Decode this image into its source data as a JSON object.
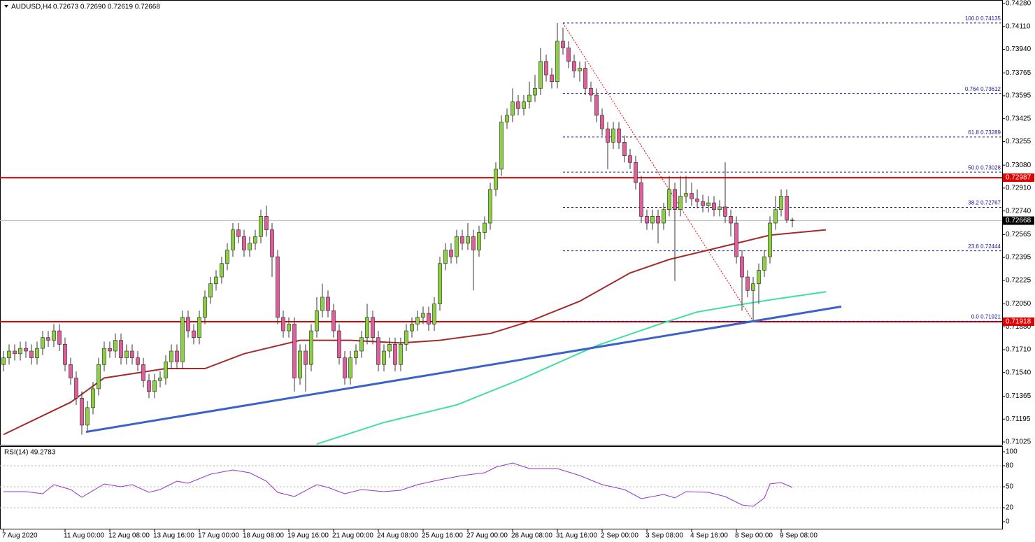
{
  "chart_data": {
    "type": "candlestick",
    "symbol": "AUDUSD,H4",
    "quote": "0.72673 0.72690 0.72619 0.72668",
    "up_color": "#8bd13c",
    "down_color": "#e55b9a",
    "wick_color": "#333333",
    "ylim": [
      0.71025,
      0.7428
    ],
    "yticks": [
      {
        "value": 0.7428,
        "label": "0.74280"
      },
      {
        "value": 0.7411,
        "label": "0.74110"
      },
      {
        "value": 0.7394,
        "label": "0.73940"
      },
      {
        "value": 0.73765,
        "label": "0.73765"
      },
      {
        "value": 0.73595,
        "label": "0.73595"
      },
      {
        "value": 0.73425,
        "label": "0.73425"
      },
      {
        "value": 0.73255,
        "label": "0.73255"
      },
      {
        "value": 0.7308,
        "label": "0.73080"
      },
      {
        "value": 0.7291,
        "label": "0.72910"
      },
      {
        "value": 0.7274,
        "label": "0.72740"
      },
      {
        "value": 0.72565,
        "label": "0.72565"
      },
      {
        "value": 0.72395,
        "label": "0.72395"
      },
      {
        "value": 0.72225,
        "label": "0.72225"
      },
      {
        "value": 0.7205,
        "label": "0.72050"
      },
      {
        "value": 0.7188,
        "label": "0.71880"
      },
      {
        "value": 0.7171,
        "label": "0.71710"
      },
      {
        "value": 0.7154,
        "label": "0.71540"
      },
      {
        "value": 0.71365,
        "label": "0.71365"
      },
      {
        "value": 0.71195,
        "label": "0.71195"
      },
      {
        "value": 0.71025,
        "label": "0.71025"
      }
    ],
    "xticks": [
      {
        "value": 0,
        "label": "7 Aug 2020"
      },
      {
        "value": 11,
        "label": "11 Aug 00:00"
      },
      {
        "value": 19,
        "label": "12 Aug 08:00"
      },
      {
        "value": 27,
        "label": "13 Aug 16:00"
      },
      {
        "value": 35,
        "label": "17 Aug 00:00"
      },
      {
        "value": 43,
        "label": "18 Aug 08:00"
      },
      {
        "value": 51,
        "label": "19 Aug 16:00"
      },
      {
        "value": 59,
        "label": "21 Aug 00:00"
      },
      {
        "value": 67,
        "label": "24 Aug 08:00"
      },
      {
        "value": 75,
        "label": "25 Aug 16:00"
      },
      {
        "value": 83,
        "label": "27 Aug 00:00"
      },
      {
        "value": 91,
        "label": "28 Aug 08:00"
      },
      {
        "value": 99,
        "label": "31 Aug 16:00"
      },
      {
        "value": 107,
        "label": "2 Sep 00:00"
      },
      {
        "value": 115,
        "label": "3 Sep 08:00"
      },
      {
        "value": 123,
        "label": "4 Sep 16:00"
      },
      {
        "value": 131,
        "label": "8 Sep 00:00"
      },
      {
        "value": 139,
        "label": "9 Sep 08:00"
      }
    ],
    "open": [
      0.716,
      0.7165,
      0.717,
      0.7168,
      0.7172,
      0.717,
      0.7165,
      0.7172,
      0.718,
      0.7178,
      0.7185,
      0.7175,
      0.716,
      0.715,
      0.7135,
      0.7115,
      0.7128,
      0.7142,
      0.716,
      0.7172,
      0.717,
      0.7178,
      0.7165,
      0.717,
      0.7165,
      0.716,
      0.7148,
      0.714,
      0.7148,
      0.715,
      0.7162,
      0.717,
      0.7162,
      0.7195,
      0.7185,
      0.718,
      0.7195,
      0.721,
      0.722,
      0.7225,
      0.7235,
      0.7245,
      0.726,
      0.7255,
      0.7245,
      0.725,
      0.7255,
      0.727,
      0.726,
      0.724,
      0.7195,
      0.7185,
      0.719,
      0.715,
      0.717,
      0.716,
      0.7185,
      0.72,
      0.721,
      0.72,
      0.7185,
      0.7165,
      0.715,
      0.7165,
      0.717,
      0.718,
      0.7195,
      0.718,
      0.716,
      0.717,
      0.7175,
      0.716,
      0.7175,
      0.7185,
      0.719,
      0.7195,
      0.7198,
      0.719,
      0.7205,
      0.7235,
      0.7245,
      0.724,
      0.7255,
      0.725,
      0.7255,
      0.7245,
      0.7258,
      0.7265,
      0.729,
      0.7305,
      0.734,
      0.7345,
      0.7355,
      0.735,
      0.7355,
      0.736,
      0.7365,
      0.7385,
      0.7375,
      0.737,
      0.74,
      0.7395,
      0.7385,
      0.7378,
      0.738,
      0.7365,
      0.736,
      0.7345,
      0.7335,
      0.7325,
      0.7335,
      0.7325,
      0.7315,
      0.731,
      0.7295,
      0.727,
      0.7265,
      0.727,
      0.7265,
      0.7275,
      0.729,
      0.7275,
      0.7285,
      0.7287,
      0.7283,
      0.7281,
      0.7278,
      0.728,
      0.7275,
      0.7277,
      0.727,
      0.7265,
      0.724,
      0.7225,
      0.7215,
      0.722,
      0.723,
      0.724,
      0.7265,
      0.7275,
      0.7285,
      0.72673
    ],
    "high": [
      0.717,
      0.7175,
      0.7175,
      0.7177,
      0.7177,
      0.7175,
      0.7177,
      0.7185,
      0.7185,
      0.719,
      0.719,
      0.718,
      0.7165,
      0.7155,
      0.714,
      0.7133,
      0.7147,
      0.7165,
      0.7177,
      0.7177,
      0.7183,
      0.7183,
      0.7175,
      0.7175,
      0.717,
      0.7165,
      0.7153,
      0.7153,
      0.7155,
      0.7167,
      0.7175,
      0.7175,
      0.72,
      0.72,
      0.719,
      0.72,
      0.7215,
      0.7225,
      0.723,
      0.724,
      0.725,
      0.7265,
      0.7265,
      0.726,
      0.7255,
      0.726,
      0.7275,
      0.7278,
      0.7265,
      0.7245,
      0.72,
      0.7195,
      0.7195,
      0.7175,
      0.7175,
      0.719,
      0.721,
      0.722,
      0.7215,
      0.7205,
      0.719,
      0.717,
      0.717,
      0.7175,
      0.7185,
      0.7205,
      0.72,
      0.7185,
      0.7175,
      0.718,
      0.718,
      0.718,
      0.719,
      0.7195,
      0.72,
      0.7203,
      0.7203,
      0.721,
      0.724,
      0.725,
      0.725,
      0.726,
      0.726,
      0.7265,
      0.726,
      0.7263,
      0.727,
      0.7295,
      0.731,
      0.7345,
      0.735,
      0.7365,
      0.736,
      0.736,
      0.737,
      0.7375,
      0.7395,
      0.739,
      0.738,
      0.74135,
      0.741,
      0.74,
      0.739,
      0.7385,
      0.7385,
      0.737,
      0.7365,
      0.735,
      0.734,
      0.734,
      0.734,
      0.733,
      0.732,
      0.7315,
      0.73,
      0.7275,
      0.7275,
      0.7275,
      0.728,
      0.73,
      0.7295,
      0.73,
      0.73,
      0.7295,
      0.729,
      0.7286,
      0.7285,
      0.7285,
      0.7282,
      0.731,
      0.7275,
      0.727,
      0.7245,
      0.723,
      0.7225,
      0.7235,
      0.7245,
      0.727,
      0.7285,
      0.729,
      0.729,
      0.7269
    ],
    "low": [
      0.7155,
      0.716,
      0.7163,
      0.7163,
      0.7165,
      0.716,
      0.716,
      0.7167,
      0.7173,
      0.7173,
      0.717,
      0.7155,
      0.7145,
      0.713,
      0.7108,
      0.711,
      0.7123,
      0.7137,
      0.7155,
      0.7165,
      0.7165,
      0.716,
      0.716,
      0.716,
      0.7155,
      0.7143,
      0.7135,
      0.7135,
      0.7143,
      0.7145,
      0.7157,
      0.7157,
      0.7157,
      0.718,
      0.7175,
      0.7175,
      0.719,
      0.7205,
      0.7215,
      0.722,
      0.723,
      0.724,
      0.725,
      0.724,
      0.724,
      0.7245,
      0.725,
      0.7255,
      0.7225,
      0.719,
      0.718,
      0.718,
      0.714,
      0.7145,
      0.714,
      0.7155,
      0.718,
      0.7195,
      0.7195,
      0.718,
      0.716,
      0.7145,
      0.7145,
      0.716,
      0.7165,
      0.7175,
      0.7175,
      0.7155,
      0.7155,
      0.7165,
      0.7155,
      0.7155,
      0.717,
      0.718,
      0.7185,
      0.719,
      0.7185,
      0.7185,
      0.72,
      0.723,
      0.7235,
      0.7235,
      0.7245,
      0.7245,
      0.7215,
      0.724,
      0.7253,
      0.726,
      0.7285,
      0.73,
      0.7335,
      0.734,
      0.7345,
      0.7345,
      0.735,
      0.7355,
      0.736,
      0.737,
      0.7365,
      0.7365,
      0.739,
      0.738,
      0.7373,
      0.737,
      0.736,
      0.7355,
      0.734,
      0.733,
      0.7305,
      0.732,
      0.732,
      0.731,
      0.7305,
      0.729,
      0.7265,
      0.726,
      0.726,
      0.725,
      0.726,
      0.727,
      0.7222,
      0.727,
      0.728,
      0.7278,
      0.7276,
      0.7273,
      0.7273,
      0.727,
      0.727,
      0.7265,
      0.7255,
      0.7235,
      0.72,
      0.721,
      0.71921,
      0.7205,
      0.7225,
      0.7235,
      0.726,
      0.727,
      0.7265,
      0.72619
    ],
    "close": [
      0.7165,
      0.717,
      0.7168,
      0.7172,
      0.717,
      0.7165,
      0.7172,
      0.718,
      0.7178,
      0.7185,
      0.7175,
      0.716,
      0.715,
      0.7135,
      0.7115,
      0.7128,
      0.7142,
      0.716,
      0.7172,
      0.717,
      0.7178,
      0.7165,
      0.717,
      0.7165,
      0.716,
      0.7148,
      0.714,
      0.7148,
      0.715,
      0.7162,
      0.717,
      0.7162,
      0.7195,
      0.7185,
      0.718,
      0.7195,
      0.721,
      0.722,
      0.7225,
      0.7235,
      0.7245,
      0.726,
      0.7255,
      0.7245,
      0.725,
      0.7255,
      0.727,
      0.726,
      0.724,
      0.7195,
      0.7185,
      0.719,
      0.715,
      0.717,
      0.716,
      0.7185,
      0.72,
      0.721,
      0.72,
      0.7185,
      0.7165,
      0.715,
      0.7165,
      0.717,
      0.718,
      0.7195,
      0.718,
      0.716,
      0.717,
      0.7175,
      0.716,
      0.7175,
      0.7185,
      0.719,
      0.7195,
      0.7198,
      0.719,
      0.7205,
      0.7235,
      0.7245,
      0.724,
      0.7255,
      0.725,
      0.7255,
      0.7245,
      0.7258,
      0.7265,
      0.729,
      0.7305,
      0.734,
      0.7345,
      0.7355,
      0.735,
      0.7355,
      0.736,
      0.7365,
      0.7385,
      0.7375,
      0.737,
      0.74,
      0.7395,
      0.7385,
      0.7378,
      0.738,
      0.7365,
      0.736,
      0.7345,
      0.7335,
      0.7325,
      0.7335,
      0.7325,
      0.7315,
      0.731,
      0.7295,
      0.727,
      0.7265,
      0.727,
      0.7265,
      0.7275,
      0.729,
      0.7275,
      0.7285,
      0.7287,
      0.7283,
      0.7281,
      0.7278,
      0.728,
      0.7275,
      0.7277,
      0.727,
      0.7265,
      0.724,
      0.7225,
      0.7215,
      0.722,
      0.723,
      0.724,
      0.7265,
      0.7275,
      0.7285,
      0.72673,
      0.72668
    ],
    "moving_averages": [
      {
        "color": "#a52a2a",
        "x": [
          0,
          12,
          18,
          29,
          36,
          43,
          53,
          62,
          71,
          78,
          87,
          94,
          103,
          112,
          119,
          131,
          137,
          147
        ],
        "values": [
          0.7108,
          0.7132,
          0.715,
          0.7157,
          0.7157,
          0.7168,
          0.7178,
          0.7178,
          0.7176,
          0.7178,
          0.7183,
          0.7192,
          0.7207,
          0.7228,
          0.7238,
          0.725,
          0.7256,
          0.726
        ]
      },
      {
        "color": "#3de0a0",
        "x": [
          56,
          68,
          81,
          93,
          106,
          118,
          124,
          131,
          137,
          147
        ],
        "values": [
          0.7101,
          0.7117,
          0.713,
          0.715,
          0.7174,
          0.7191,
          0.7199,
          0.7204,
          0.7208,
          0.7214
        ]
      }
    ],
    "trendline": {
      "color": "#3a62c9",
      "x": [
        14.75,
        149.75
      ],
      "values": [
        0.711,
        0.7203
      ]
    },
    "levels": [
      {
        "value": 0.72987,
        "label": "0.72987",
        "color": "#e00000"
      },
      {
        "value": 0.71918,
        "label": "0.71918",
        "color": "#e00000"
      }
    ],
    "last_price": {
      "value": 0.72668,
      "label": "0.72668",
      "color": "#000000"
    },
    "fib": {
      "x": [
        100,
        134
      ],
      "color": "#1a1a9c",
      "line_color": "#e00000",
      "levels": [
        {
          "value": 0.74135,
          "label": "100.0 0.74135"
        },
        {
          "value": 0.73612,
          "label": "0.764 0.73612"
        },
        {
          "value": 0.73289,
          "label": "61.8 0.73289"
        },
        {
          "value": 0.73028,
          "label": "50.0 0.73028"
        },
        {
          "value": 0.72767,
          "label": "38.2 0.72767"
        },
        {
          "value": 0.72444,
          "label": "23.6 0.72444"
        },
        {
          "value": 0.71921,
          "label": "0.0 0.71921"
        }
      ]
    },
    "rsi": {
      "label": "RSI(14) 49.2783",
      "color": "#9932cc",
      "ylim": [
        0,
        100
      ],
      "yticks": [
        100,
        80,
        50,
        20,
        0
      ],
      "levels": [
        80,
        50,
        20
      ],
      "x": [
        0,
        4,
        7,
        9,
        12,
        14,
        18,
        21,
        23,
        26,
        28,
        31,
        33,
        37,
        41,
        44,
        47,
        49,
        52,
        56,
        58,
        61,
        64,
        68,
        71,
        74,
        78,
        82,
        86,
        88,
        91,
        94,
        99,
        103,
        107,
        111,
        114,
        118,
        120,
        122,
        126,
        129,
        132,
        134,
        136,
        137,
        139,
        141
      ],
      "values": [
        43,
        43,
        40,
        53,
        46,
        35,
        54,
        50,
        53,
        42,
        46,
        58,
        55,
        68,
        74,
        70,
        58,
        42,
        36,
        53,
        49,
        40,
        46,
        43,
        45,
        53,
        60,
        66,
        70,
        78,
        84,
        76,
        76,
        66,
        53,
        46,
        33,
        39,
        34,
        43,
        42,
        36,
        24,
        22,
        34,
        54,
        56,
        49
      ]
    }
  }
}
